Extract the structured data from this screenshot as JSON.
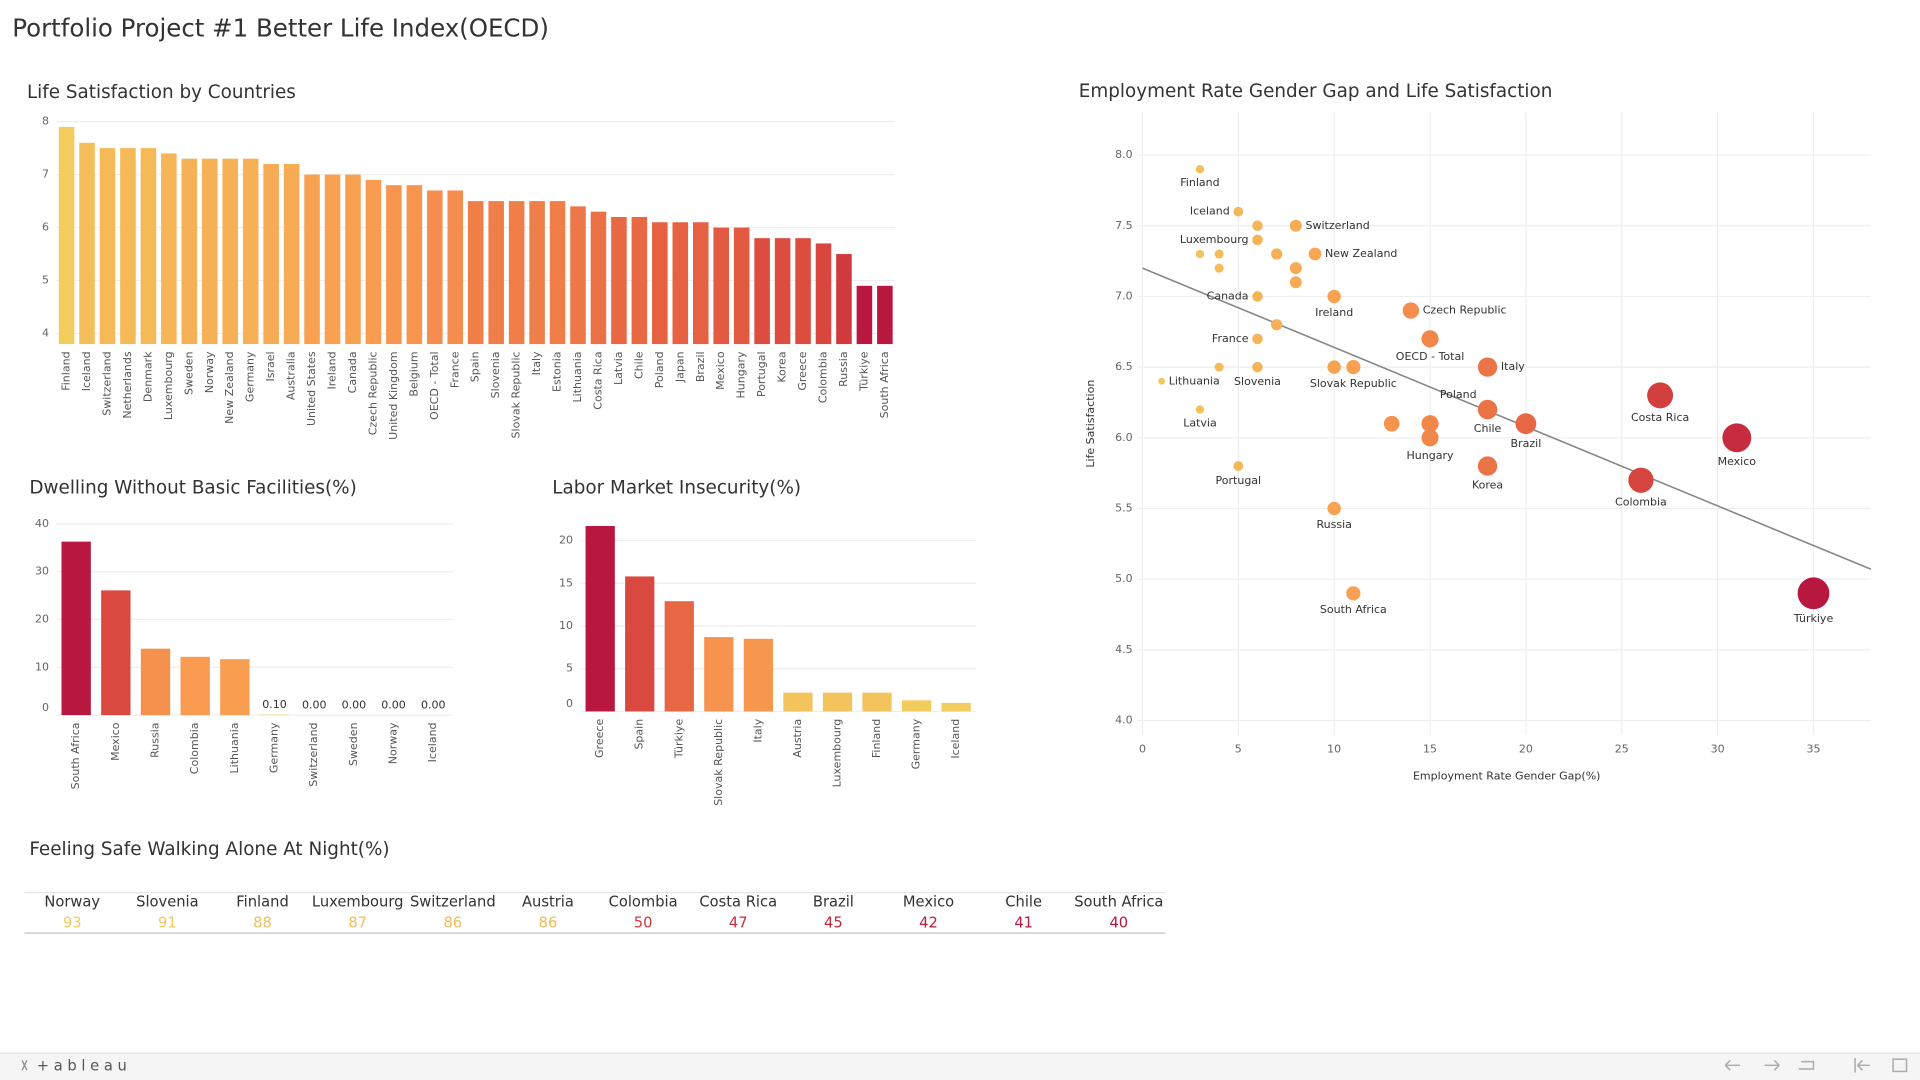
{
  "page_title": "Portfolio Project #1 Better Life Index(OECD)",
  "chart_data": [
    {
      "type": "bar",
      "title": "Life Satisfaction by Countries",
      "categories": [
        "Finland",
        "Iceland",
        "Switzerland",
        "Netherlands",
        "Denmark",
        "Luxembourg",
        "Sweden",
        "Norway",
        "New Zealand",
        "Germany",
        "Israel",
        "Australia",
        "United States",
        "Ireland",
        "Canada",
        "Czech Republic",
        "United Kingdom",
        "Belgium",
        "OECD - Total",
        "France",
        "Spain",
        "Slovenia",
        "Slovak Republic",
        "Italy",
        "Estonia",
        "Lithuania",
        "Costa Rica",
        "Latvia",
        "Chile",
        "Poland",
        "Japan",
        "Brazil",
        "Mexico",
        "Hungary",
        "Portugal",
        "Korea",
        "Greece",
        "Colombia",
        "Russia",
        "Türkiye",
        "South Africa"
      ],
      "values": [
        7.9,
        7.6,
        7.5,
        7.5,
        7.5,
        7.4,
        7.3,
        7.3,
        7.3,
        7.3,
        7.2,
        7.2,
        7.0,
        7.0,
        7.0,
        6.9,
        6.8,
        6.8,
        6.7,
        6.7,
        6.5,
        6.5,
        6.5,
        6.5,
        6.5,
        6.4,
        6.3,
        6.2,
        6.2,
        6.1,
        6.1,
        6.1,
        6.0,
        6.0,
        5.8,
        5.8,
        5.8,
        5.7,
        5.5,
        4.9,
        4.9
      ],
      "color_scale": [
        "#b8173f",
        "#e0523f",
        "#f99c50",
        "#f2cd5e"
      ],
      "ylim": [
        3.8,
        8.1
      ],
      "yticks": [
        4,
        5,
        6,
        7,
        8
      ],
      "grid": true
    },
    {
      "type": "bar",
      "title": "Dwelling Without Basic Facilities(%)",
      "categories": [
        "South Africa",
        "Mexico",
        "Russia",
        "Colombia",
        "Lithuania",
        "Germany",
        "Switzerland",
        "Sweden",
        "Norway",
        "Iceland"
      ],
      "values": [
        36.3,
        26.1,
        13.9,
        12.2,
        11.7,
        0.1,
        0,
        0,
        0,
        0
      ],
      "value_labels": [
        null,
        null,
        null,
        null,
        null,
        "0.10",
        "0.00",
        "0.00",
        "0.00",
        "0.00"
      ],
      "color_scale": [
        "#f2cd5e",
        "#f99c50",
        "#e0523f",
        "#b8173f"
      ],
      "ylim": [
        0,
        41
      ],
      "yticks": [
        0,
        10,
        20,
        30,
        40
      ],
      "grid": true
    },
    {
      "type": "bar",
      "title": "Labor Market Insecurity(%)",
      "categories": [
        "Greece",
        "Spain",
        "Türkiye",
        "Slovak Republic",
        "Italy",
        "Austria",
        "Luxembourg",
        "Finland",
        "Germany",
        "Iceland"
      ],
      "values": [
        21.7,
        15.8,
        12.9,
        8.7,
        8.5,
        2.2,
        2.2,
        2.2,
        1.3,
        1.0
      ],
      "color_scale": [
        "#f2cd5e",
        "#f99c50",
        "#e0523f",
        "#b8173f"
      ],
      "ylim": [
        0,
        22.5
      ],
      "yticks": [
        0,
        5,
        10,
        15,
        20
      ],
      "grid": true
    },
    {
      "type": "scatter",
      "title": "Employment Rate Gender Gap and Life Satisfaction",
      "x_label": "Employment Rate Gender Gap(%)",
      "y_label": "Life Satisfaction",
      "labels": [
        "Finland",
        "Iceland",
        null,
        "Switzerland",
        "Luxembourg",
        null,
        null,
        null,
        null,
        "New Zealand",
        null,
        null,
        "Canada",
        "Ireland",
        "Czech Republic",
        null,
        "France",
        "OECD - Total",
        "Lithuania",
        null,
        "Slovenia",
        null,
        "Slovak Republic",
        "Italy",
        "Costa Rica",
        "Poland",
        "Chile",
        "Latvia",
        null,
        null,
        "Brazil",
        "Hungary",
        "Mexico",
        "Portugal",
        "Korea",
        "Colombia",
        "Russia",
        "South Africa",
        "Türkiye"
      ],
      "x": [
        3,
        5,
        6,
        8,
        6,
        3,
        4,
        4,
        7,
        9,
        8,
        8,
        6,
        10,
        14,
        7,
        6,
        15,
        1,
        4,
        6,
        10,
        11,
        18,
        27,
        18,
        18,
        3,
        13,
        15,
        20,
        15,
        31,
        5,
        18,
        26,
        10,
        11,
        35
      ],
      "y": [
        7.9,
        7.6,
        7.5,
        7.5,
        7.4,
        7.3,
        7.3,
        7.2,
        7.3,
        7.3,
        7.2,
        7.1,
        7.0,
        7.0,
        6.9,
        6.8,
        6.7,
        6.7,
        6.4,
        6.5,
        6.5,
        6.5,
        6.5,
        6.5,
        6.3,
        6.2,
        6.2,
        6.2,
        6.1,
        6.1,
        6.1,
        6.0,
        6.0,
        5.8,
        5.8,
        5.7,
        5.5,
        4.9,
        4.9
      ],
      "trend_line": {
        "x": [
          0,
          38
        ],
        "y": [
          7.2,
          5.07
        ],
        "color": "#888888"
      },
      "color_scale": [
        "#f2cd5e",
        "#f99c50",
        "#e0523f",
        "#b8173f"
      ],
      "xlim": [
        0,
        38
      ],
      "xticks": [
        0,
        5,
        10,
        15,
        20,
        25,
        30,
        35
      ],
      "ylim": [
        3.9,
        8.3
      ],
      "yticks": [
        {
          "value": 4,
          "label": "4.0"
        },
        4.5,
        {
          "value": 5,
          "label": "5.0"
        },
        5.5,
        {
          "value": 6,
          "label": "6.0"
        },
        6.5,
        {
          "value": 7,
          "label": "7.0"
        },
        7.5,
        {
          "value": 8,
          "label": "8.0"
        }
      ],
      "grid": true
    }
  ],
  "table": {
    "title": "Feeling Safe Walking Alone At Night(%)",
    "columns": [
      "Norway",
      "Slovenia",
      "Finland",
      "Luxembourg",
      "Switzerland",
      "Austria",
      "Colombia",
      "Costa Rica",
      "Brazil",
      "Mexico",
      "Chile",
      "South Africa"
    ],
    "values": [
      93,
      91,
      88,
      87,
      86,
      86,
      50,
      47,
      45,
      42,
      41,
      40
    ],
    "color_scale": [
      "#b8173f",
      "#e0523f",
      "#f99c50",
      "#f2cd5e"
    ]
  },
  "footer": "+ a b l e a u"
}
